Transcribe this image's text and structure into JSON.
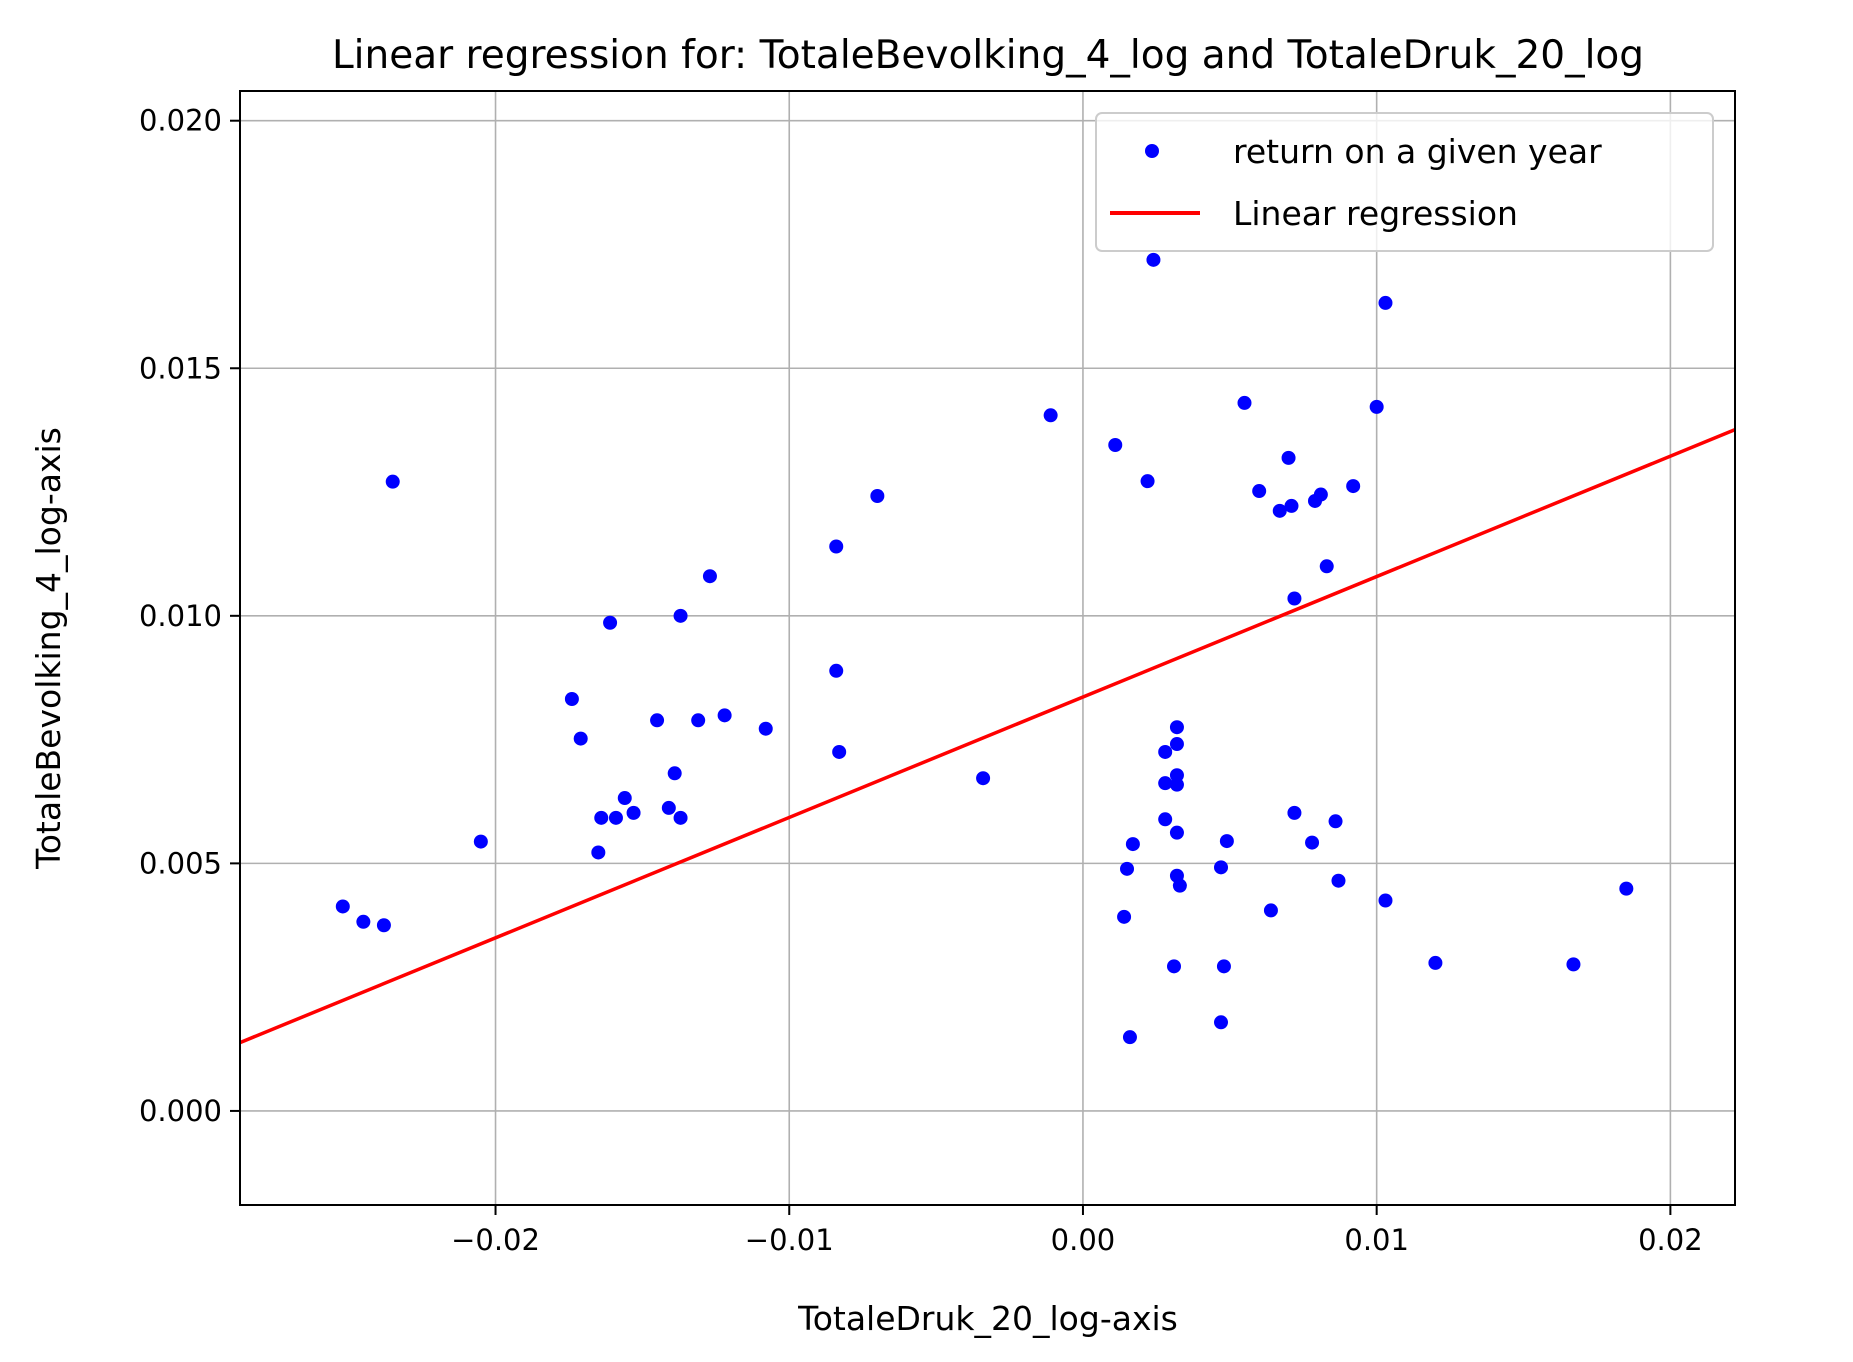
{
  "chart_data": {
    "type": "scatter",
    "title": "Linear regression for: TotaleBevolking_4_log and TotaleDruk_20_log",
    "xlabel": "TotaleDruk_20_log-axis",
    "ylabel": "TotaleBevolking_4_log-axis",
    "xlim": [
      -0.0287,
      0.0222
    ],
    "ylim": [
      -0.0019,
      0.0206
    ],
    "x_ticks": [
      -0.02,
      -0.01,
      0.0,
      0.01,
      0.02
    ],
    "x_tick_labels": [
      "−0.02",
      "−0.01",
      "0.00",
      "0.01",
      "0.02"
    ],
    "y_ticks": [
      0.0,
      0.005,
      0.01,
      0.015,
      0.02
    ],
    "y_tick_labels": [
      "0.000",
      "0.005",
      "0.010",
      "0.015",
      "0.020"
    ],
    "grid": true,
    "legend_position": "top-right",
    "series": [
      {
        "name": "return on a given year",
        "kind": "scatter",
        "color": "#0000ff",
        "points": [
          [
            -0.0252,
            0.00413
          ],
          [
            -0.0245,
            0.00382
          ],
          [
            -0.0238,
            0.00375
          ],
          [
            -0.0235,
            0.01271
          ],
          [
            -0.0205,
            0.00544
          ],
          [
            -0.0174,
            0.00832
          ],
          [
            -0.0171,
            0.00752
          ],
          [
            -0.0165,
            0.00522
          ],
          [
            -0.0164,
            0.00592
          ],
          [
            -0.0161,
            0.00986
          ],
          [
            -0.0159,
            0.00592
          ],
          [
            -0.0156,
            0.00632
          ],
          [
            -0.0153,
            0.00602
          ],
          [
            -0.0145,
            0.00789
          ],
          [
            -0.0141,
            0.00612
          ],
          [
            -0.0139,
            0.00682
          ],
          [
            -0.0137,
            0.01
          ],
          [
            -0.0137,
            0.00592
          ],
          [
            -0.0131,
            0.00789
          ],
          [
            -0.0127,
            0.0108
          ],
          [
            -0.0122,
            0.00799
          ],
          [
            -0.0108,
            0.00772
          ],
          [
            -0.0084,
            0.0114
          ],
          [
            -0.0084,
            0.00889
          ],
          [
            -0.0083,
            0.00725
          ],
          [
            -0.007,
            0.01242
          ],
          [
            -0.0034,
            0.00672
          ],
          [
            -0.0011,
            0.01405
          ],
          [
            0.0011,
            0.01345
          ],
          [
            0.0014,
            0.00392
          ],
          [
            0.0015,
            0.00489
          ],
          [
            0.0016,
            0.00149
          ],
          [
            0.0017,
            0.00539
          ],
          [
            0.0022,
            0.01272
          ],
          [
            0.0024,
            0.01719
          ],
          [
            0.0028,
            0.00662
          ],
          [
            0.0028,
            0.00725
          ],
          [
            0.0028,
            0.00589
          ],
          [
            0.0031,
            0.00292
          ],
          [
            0.0032,
            0.00775
          ],
          [
            0.0032,
            0.00741
          ],
          [
            0.0032,
            0.00678
          ],
          [
            0.0032,
            0.00659
          ],
          [
            0.0032,
            0.00562
          ],
          [
            0.0032,
            0.00475
          ],
          [
            0.0033,
            0.00455
          ],
          [
            0.0047,
            0.00492
          ],
          [
            0.0047,
            0.00179
          ],
          [
            0.0048,
            0.00292
          ],
          [
            0.0049,
            0.00545
          ],
          [
            0.0055,
            0.0143
          ],
          [
            0.006,
            0.01252
          ],
          [
            0.0064,
            0.00405
          ],
          [
            0.0067,
            0.01212
          ],
          [
            0.007,
            0.01319
          ],
          [
            0.0071,
            0.01222
          ],
          [
            0.0072,
            0.01035
          ],
          [
            0.0072,
            0.00602
          ],
          [
            0.0078,
            0.00542
          ],
          [
            0.0079,
            0.01232
          ],
          [
            0.0081,
            0.01245
          ],
          [
            0.0083,
            0.011
          ],
          [
            0.0086,
            0.00585
          ],
          [
            0.0087,
            0.00465
          ],
          [
            0.0092,
            0.01262
          ],
          [
            0.01,
            0.01422
          ],
          [
            0.0103,
            0.01632
          ],
          [
            0.0103,
            0.00425
          ],
          [
            0.012,
            0.00299
          ],
          [
            0.0167,
            0.00296
          ],
          [
            0.0185,
            0.00449
          ]
        ]
      },
      {
        "name": "Linear regression",
        "kind": "line",
        "color": "#ff0000",
        "points": [
          [
            -0.0287,
            0.00138
          ],
          [
            0.0222,
            0.01376
          ]
        ]
      }
    ]
  }
}
